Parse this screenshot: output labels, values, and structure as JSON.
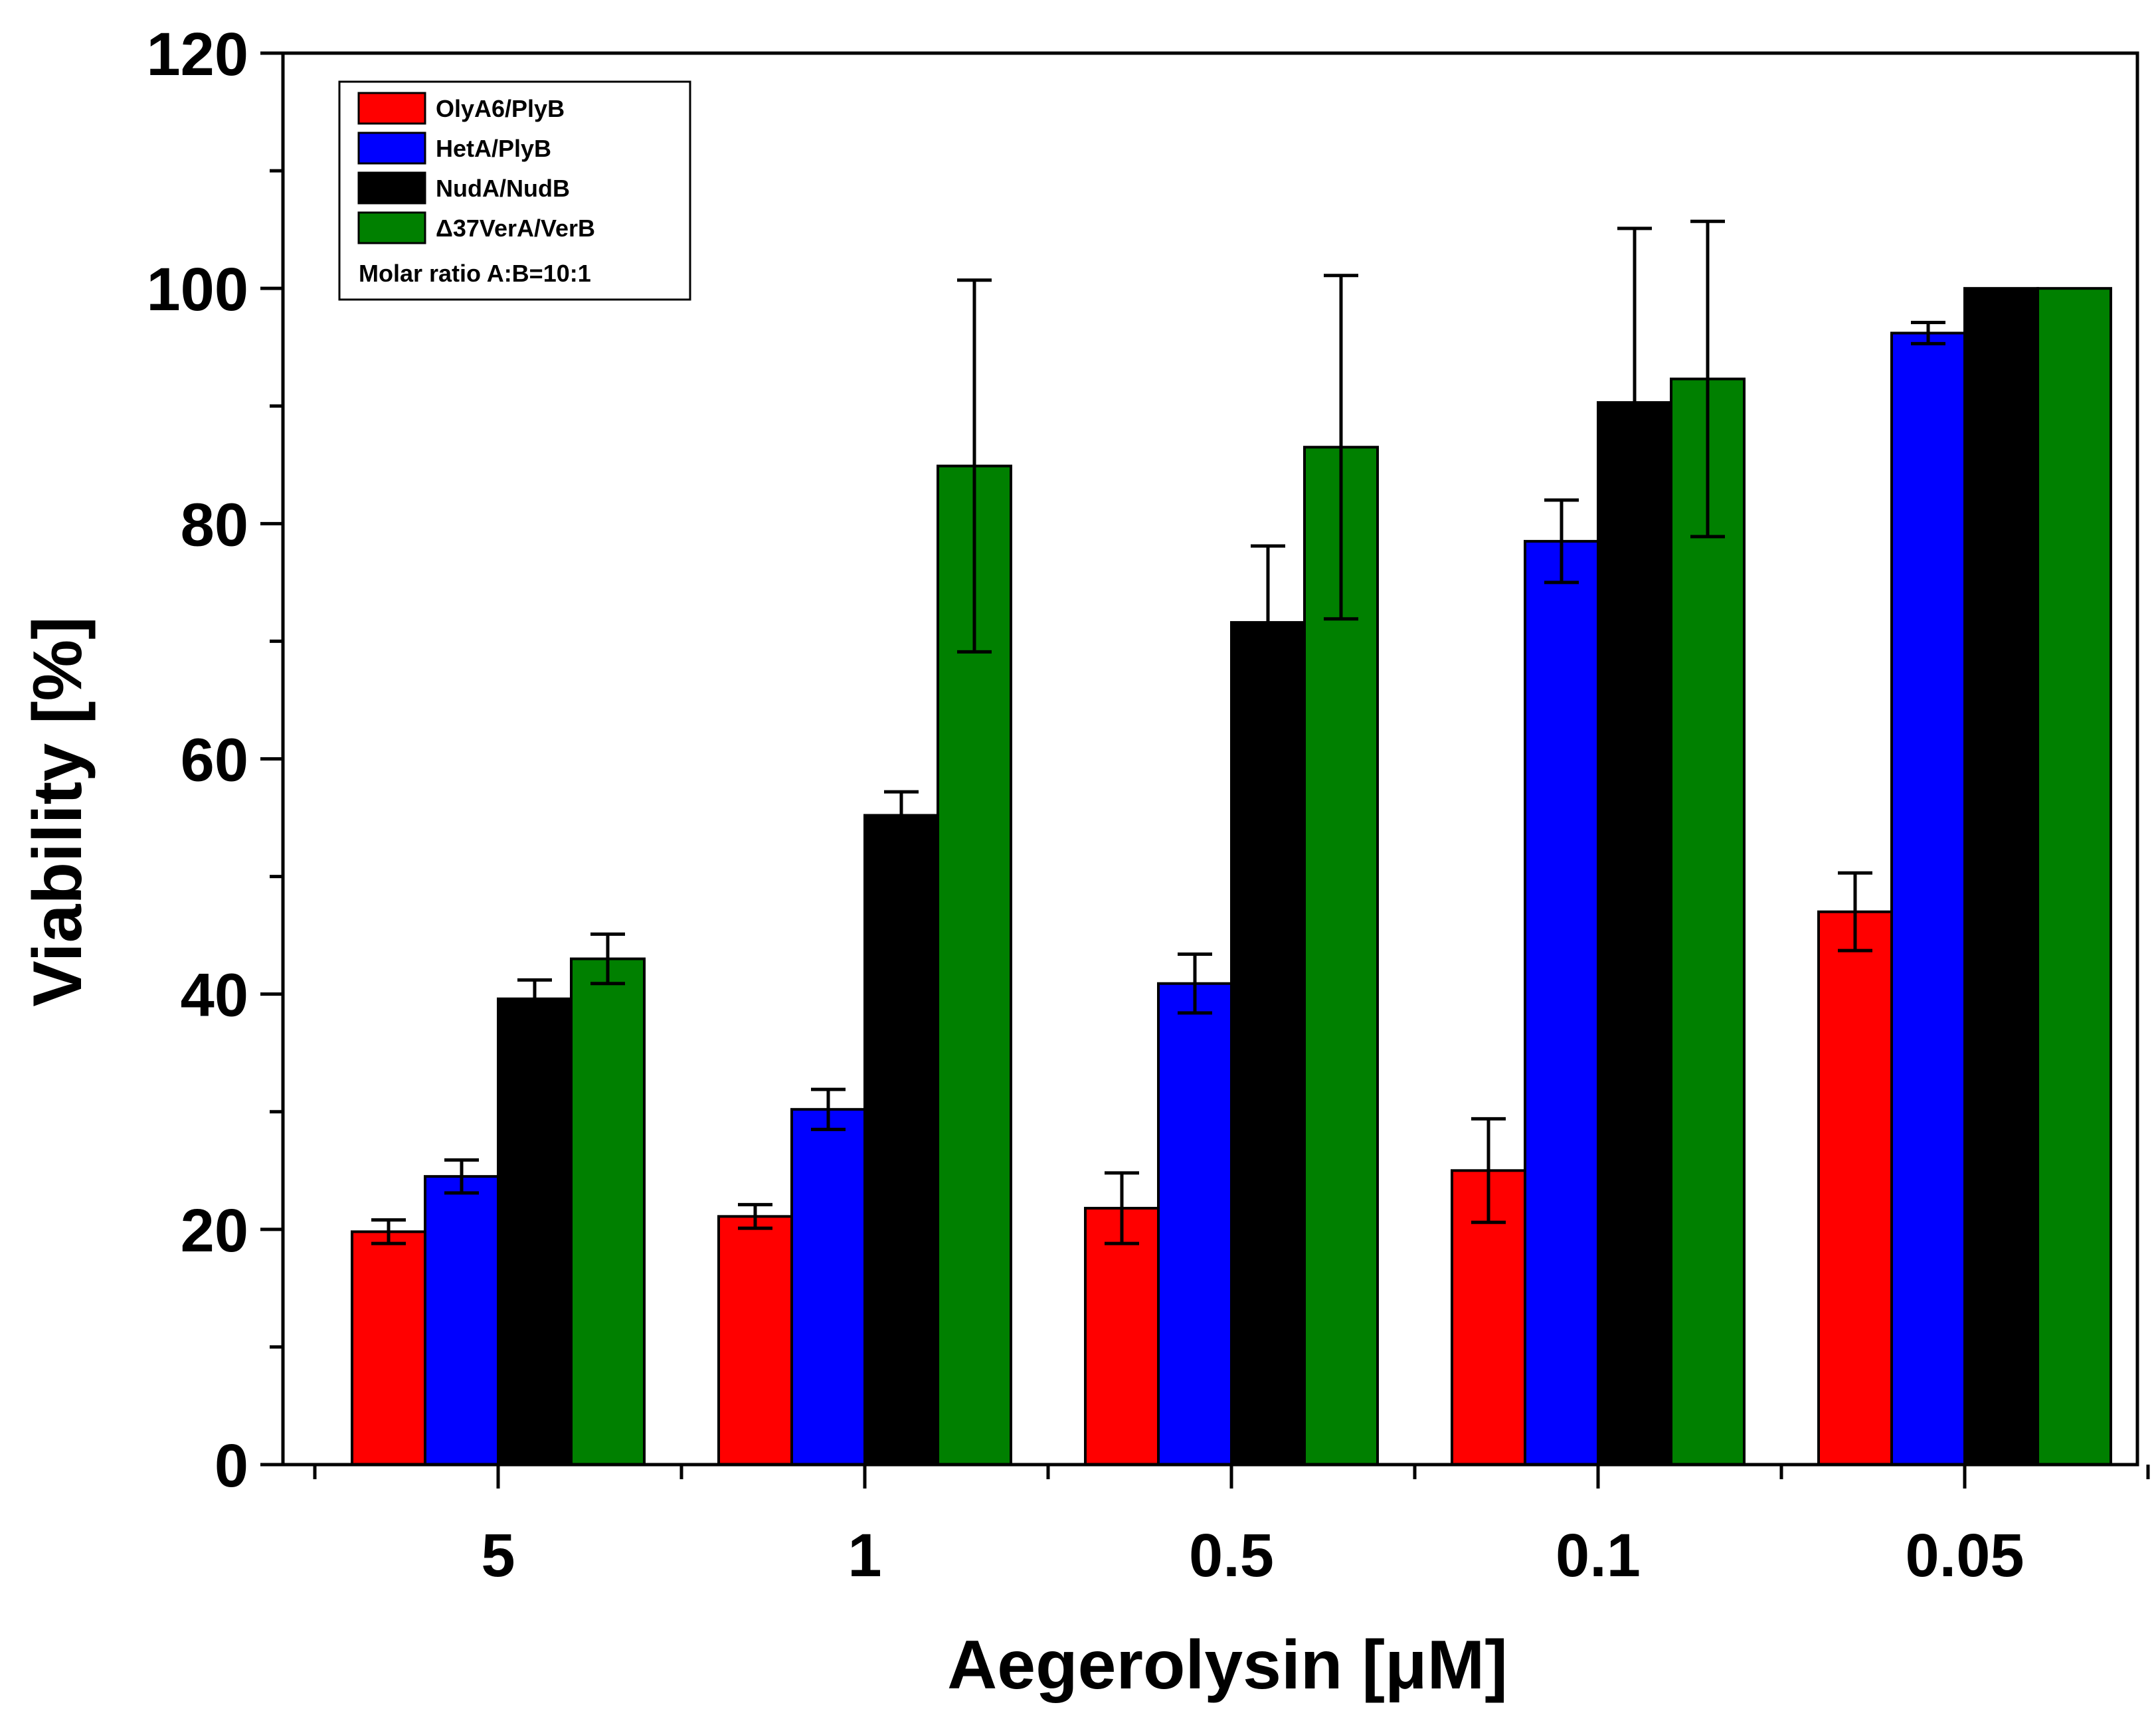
{
  "chart_data": {
    "type": "bar",
    "xlabel": "Aegerolysin [μM]",
    "ylabel": "Viability [%]",
    "ylim": [
      0,
      120
    ],
    "yticks": [
      "0",
      "20",
      "40",
      "60",
      "80",
      "100",
      "120"
    ],
    "categories": [
      "5",
      "1",
      "0.5",
      "0.1",
      "0.05"
    ],
    "series": [
      {
        "name": "OlyA6/PlyB",
        "color": "#ff0000",
        "values": [
          19.8,
          21.1,
          21.8,
          25.0,
          47.0
        ],
        "errors": [
          1.0,
          1.0,
          3.0,
          4.4,
          3.3
        ]
      },
      {
        "name": "HetA/PlyB",
        "color": "#0000ff",
        "values": [
          24.5,
          30.2,
          40.9,
          78.5,
          96.2
        ],
        "errors": [
          1.4,
          1.7,
          2.5,
          3.5,
          0.9
        ]
      },
      {
        "name": "NudA/NudB",
        "color": "#000000",
        "values": [
          39.6,
          55.2,
          71.6,
          90.3,
          100.0
        ],
        "errors": [
          1.6,
          2.0,
          6.5,
          14.8,
          0
        ]
      },
      {
        "name": "Δ37VerA/VerB",
        "color": "#008000",
        "values": [
          43.0,
          84.9,
          86.5,
          92.3,
          100.0
        ],
        "errors": [
          2.1,
          15.8,
          14.6,
          13.4,
          0
        ]
      }
    ],
    "legend_note": "Molar ratio A:B=10:1",
    "legend_position": "top-left"
  }
}
